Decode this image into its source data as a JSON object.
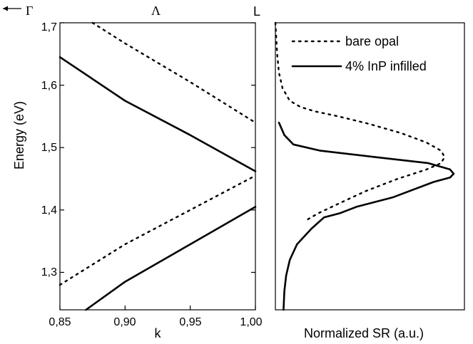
{
  "chart_data": [
    {
      "type": "line",
      "title": "",
      "xlabel": "k",
      "ylabel": "Energy (eV)",
      "xlim": [
        0.85,
        1.0
      ],
      "ylim": [
        1.24,
        1.7
      ],
      "xticks": [
        0.85,
        0.9,
        0.95,
        1.0
      ],
      "xtick_labels": [
        "0,85",
        "0,90",
        "0,95",
        "1,00"
      ],
      "yticks": [
        1.3,
        1.4,
        1.5,
        1.6,
        1.7
      ],
      "ytick_labels": [
        "1,3",
        "1,4",
        "1,5",
        "1,6",
        "1,7"
      ],
      "top_labels": [
        "Γ",
        "Λ",
        "L"
      ],
      "series": [
        {
          "style": "dotted",
          "x": [
            0.875,
            0.9,
            0.95,
            1.0
          ],
          "y": [
            1.7,
            1.667,
            1.605,
            1.54
          ]
        },
        {
          "style": "solid",
          "x": [
            0.85,
            0.9,
            0.95,
            1.0
          ],
          "y": [
            1.645,
            1.575,
            1.52,
            1.462
          ]
        },
        {
          "style": "dotted",
          "x": [
            0.85,
            0.9,
            0.95,
            1.0
          ],
          "y": [
            1.28,
            1.345,
            1.4,
            1.455
          ]
        },
        {
          "style": "solid",
          "x": [
            0.87,
            0.9,
            0.95,
            1.0
          ],
          "y": [
            1.24,
            1.285,
            1.345,
            1.405
          ]
        }
      ],
      "grid": false
    },
    {
      "type": "line",
      "title": "",
      "xlabel": "Normalized SR (a.u.)",
      "ylabel": "",
      "xlim": [
        0,
        1.05
      ],
      "ylim": [
        1.24,
        1.7
      ],
      "legend_position": "top-right",
      "series": [
        {
          "name": "bare opal",
          "style": "dotted",
          "x": [
            0.0,
            0.01,
            0.02,
            0.04,
            0.08,
            0.14,
            0.22,
            0.35,
            0.52,
            0.7,
            0.84,
            0.92,
            0.94,
            0.92,
            0.84,
            0.68,
            0.5,
            0.35,
            0.24,
            0.18
          ],
          "y": [
            1.7,
            1.65,
            1.62,
            1.595,
            1.575,
            1.565,
            1.558,
            1.55,
            1.538,
            1.523,
            1.508,
            1.495,
            1.485,
            1.475,
            1.465,
            1.45,
            1.43,
            1.41,
            1.395,
            1.385
          ]
        },
        {
          "name": "4% InP infilled",
          "style": "solid",
          "x": [
            0.02,
            0.05,
            0.1,
            0.25,
            0.55,
            0.85,
            0.97,
            0.99,
            0.97,
            0.88,
            0.65,
            0.45,
            0.36,
            0.27,
            0.2,
            0.12,
            0.08,
            0.06,
            0.05,
            0.045
          ],
          "y": [
            1.54,
            1.52,
            1.505,
            1.495,
            1.485,
            1.475,
            1.465,
            1.458,
            1.452,
            1.445,
            1.42,
            1.405,
            1.395,
            1.388,
            1.37,
            1.345,
            1.32,
            1.295,
            1.27,
            1.24
          ]
        }
      ],
      "grid": false
    }
  ]
}
